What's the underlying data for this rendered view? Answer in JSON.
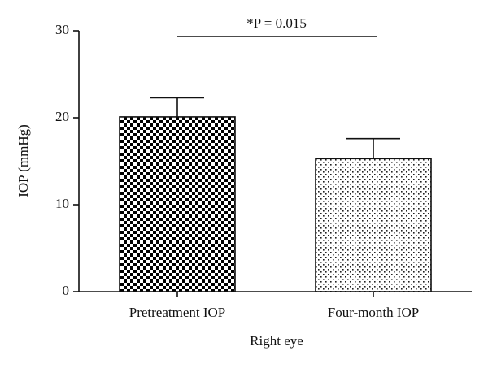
{
  "chart_data": {
    "type": "bar",
    "annotation": "*P = 0.015",
    "x_label": "Right eye",
    "y_label": "IOP (mmHg)",
    "categories": [
      "Pretreatment IOP",
      "Four-month IOP"
    ],
    "values": [
      20.1,
      15.3
    ],
    "errors": [
      2.2,
      2.3
    ],
    "ylim": [
      0,
      30
    ],
    "yticks": [
      0,
      10,
      20,
      30
    ]
  }
}
